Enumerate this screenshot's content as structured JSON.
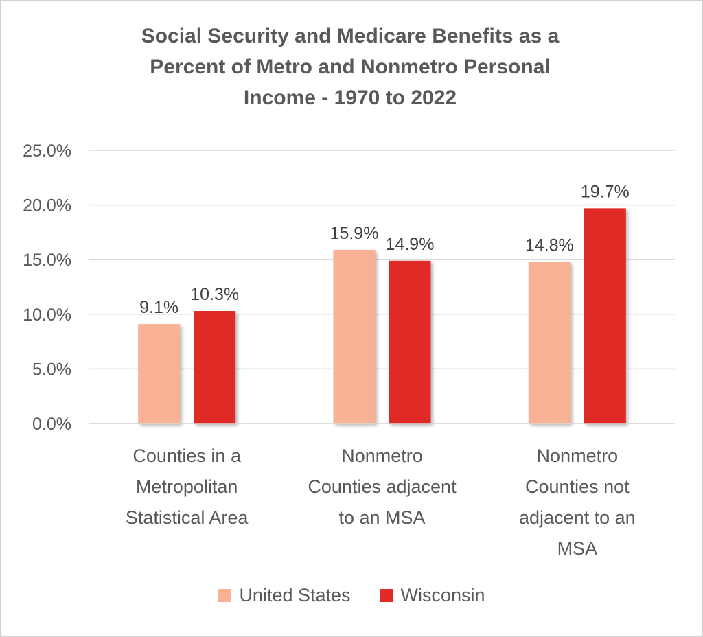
{
  "chart_data": {
    "type": "bar",
    "title_lines": [
      "Social Security and Medicare Benefits as a",
      "Percent of Metro and Nonmetro Personal",
      "Income - 1970 to 2022"
    ],
    "categories": [
      [
        "Counties in a",
        "Metropolitan",
        "Statistical Area"
      ],
      [
        "Nonmetro",
        "Counties adjacent",
        "to an MSA"
      ],
      [
        "Nonmetro",
        "Counties not",
        "adjacent to an",
        "MSA"
      ]
    ],
    "series": [
      {
        "name": "United States",
        "color": "#F8B195",
        "values": [
          9.1,
          15.9,
          14.8
        ],
        "labels": [
          "9.1%",
          "15.9%",
          "14.8%"
        ]
      },
      {
        "name": "Wisconsin",
        "color": "#E02B27",
        "values": [
          10.3,
          14.9,
          19.7
        ],
        "labels": [
          "10.3%",
          "14.9%",
          "19.7%"
        ]
      }
    ],
    "y_ticks": [
      "0.0%",
      "5.0%",
      "10.0%",
      "15.0%",
      "20.0%",
      "25.0%"
    ],
    "ylim": [
      0,
      25
    ],
    "grid": true,
    "legend_position": "bottom"
  }
}
